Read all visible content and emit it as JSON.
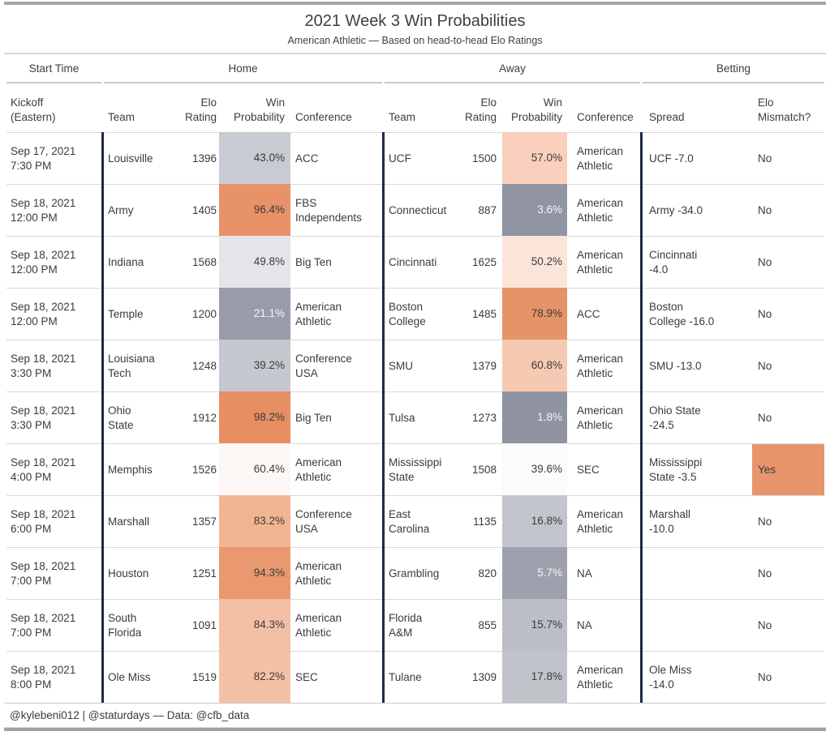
{
  "title": "2021 Week 3 Win Probabilities",
  "subtitle": "American Athletic — Based on head-to-head Elo Ratings",
  "footer": "@kylebeni012 | @staturdays — Data: @cfb_data",
  "groups": {
    "start_time": "Start Time",
    "home": "Home",
    "away": "Away",
    "betting": "Betting"
  },
  "columns": {
    "kickoff": "Kickoff\n(Eastern)",
    "team": "Team",
    "elo": "Elo\nRating",
    "win_prob": "Win\nProbability",
    "conference": "Conference",
    "spread": "Spread",
    "mismatch": "Elo\nMismatch?"
  },
  "colors": {
    "divider_navy": "#1b2a45",
    "grid_line": "#d9d9d9",
    "rule_gray": "#c9c9c9",
    "bar_gray": "#a5a5a5",
    "orange_max": "#e78e62",
    "gray_min": "#9094a2"
  },
  "chart_data": {
    "type": "table",
    "rows": [
      {
        "kickoff": "Sep 17, 2021\n7:30 PM",
        "h_team": "Louisville",
        "h_elo": "1396",
        "h_wp": "43.0%",
        "h_wp_bg": "#c9cbd2",
        "h_wp_fg": "#3b3b3b",
        "h_conf": "ACC",
        "a_team": "UCF",
        "a_elo": "1500",
        "a_wp": "57.0%",
        "a_wp_bg": "#f8d0bd",
        "a_wp_fg": "#3b3b3b",
        "a_conf": "American\nAthletic",
        "spread": "UCF -7.0",
        "mismatch": "No",
        "mm_bg": "transparent"
      },
      {
        "kickoff": "Sep 18, 2021\n12:00 PM",
        "h_team": "Army",
        "h_elo": "1405",
        "h_wp": "96.4%",
        "h_wp_bg": "#e8926a",
        "h_wp_fg": "#3b3b3b",
        "h_conf": "FBS\nIndependents",
        "a_team": "Connecticut",
        "a_elo": "887",
        "a_wp": "3.6%",
        "a_wp_bg": "#9195a3",
        "a_wp_fg": "#f5f5f5",
        "a_conf": "American\nAthletic",
        "spread": "Army -34.0",
        "mismatch": "No",
        "mm_bg": "transparent"
      },
      {
        "kickoff": "Sep 18, 2021\n12:00 PM",
        "h_team": "Indiana",
        "h_elo": "1568",
        "h_wp": "49.8%",
        "h_wp_bg": "#e5e5e9",
        "h_wp_fg": "#3b3b3b",
        "h_conf": "Big Ten",
        "a_team": "Cincinnati",
        "a_elo": "1625",
        "a_wp": "50.2%",
        "a_wp_bg": "#fbe4d8",
        "a_wp_fg": "#3b3b3b",
        "a_conf": "American\nAthletic",
        "spread": "Cincinnati\n-4.0",
        "mismatch": "No",
        "mm_bg": "transparent"
      },
      {
        "kickoff": "Sep 18, 2021\n12:00 PM",
        "h_team": "Temple",
        "h_elo": "1200",
        "h_wp": "21.1%",
        "h_wp_bg": "#989caa",
        "h_wp_fg": "#f5f5f5",
        "h_conf": "American\nAthletic",
        "a_team": "Boston\nCollege",
        "a_elo": "1485",
        "a_wp": "78.9%",
        "a_wp_bg": "#e59467",
        "a_wp_fg": "#3b3b3b",
        "a_conf": "ACC",
        "spread": "Boston\nCollege -16.0",
        "mismatch": "No",
        "mm_bg": "transparent"
      },
      {
        "kickoff": "Sep 18, 2021\n3:30 PM",
        "h_team": "Louisiana\nTech",
        "h_elo": "1248",
        "h_wp": "39.2%",
        "h_wp_bg": "#c6c8cf",
        "h_wp_fg": "#3b3b3b",
        "h_conf": "Conference\nUSA",
        "a_team": "SMU",
        "a_elo": "1379",
        "a_wp": "60.8%",
        "a_wp_bg": "#f6c9b2",
        "a_wp_fg": "#3b3b3b",
        "a_conf": "American\nAthletic",
        "spread": "SMU -13.0",
        "mismatch": "No",
        "mm_bg": "transparent"
      },
      {
        "kickoff": "Sep 18, 2021\n3:30 PM",
        "h_team": "Ohio\nState",
        "h_elo": "1912",
        "h_wp": "98.2%",
        "h_wp_bg": "#e78e62",
        "h_wp_fg": "#3b3b3b",
        "h_conf": "Big Ten",
        "a_team": "Tulsa",
        "a_elo": "1273",
        "a_wp": "1.8%",
        "a_wp_bg": "#9094a2",
        "a_wp_fg": "#f5f5f5",
        "a_conf": "American\nAthletic",
        "spread": "Ohio State\n-24.5",
        "mismatch": "No",
        "mm_bg": "transparent"
      },
      {
        "kickoff": "Sep 18, 2021\n4:00 PM",
        "h_team": "Memphis",
        "h_elo": "1526",
        "h_wp": "60.4%",
        "h_wp_bg": "#fdf8f5",
        "h_wp_fg": "#3b3b3b",
        "h_conf": "American\nAthletic",
        "a_team": "Mississippi\nState",
        "a_elo": "1508",
        "a_wp": "39.6%",
        "a_wp_bg": "#fbfbfb",
        "a_wp_fg": "#3b3b3b",
        "a_conf": "SEC",
        "spread": "Mississippi\nState -3.5",
        "mismatch": "Yes",
        "mm_bg": "#e8946c"
      },
      {
        "kickoff": "Sep 18, 2021\n6:00 PM",
        "h_team": "Marshall",
        "h_elo": "1357",
        "h_wp": "83.2%",
        "h_wp_bg": "#f2b592",
        "h_wp_fg": "#3b3b3b",
        "h_conf": "Conference\nUSA",
        "a_team": "East\nCarolina",
        "a_elo": "1135",
        "a_wp": "16.8%",
        "a_wp_bg": "#c3c5cc",
        "a_wp_fg": "#3b3b3b",
        "a_conf": "American\nAthletic",
        "spread": "Marshall\n-10.0",
        "mismatch": "No",
        "mm_bg": "transparent"
      },
      {
        "kickoff": "Sep 18, 2021\n7:00 PM",
        "h_team": "Houston",
        "h_elo": "1251",
        "h_wp": "94.3%",
        "h_wp_bg": "#e9986f",
        "h_wp_fg": "#3b3b3b",
        "h_conf": "American\nAthletic",
        "a_team": "Grambling",
        "a_elo": "820",
        "a_wp": "5.7%",
        "a_wp_bg": "#9da1ae",
        "a_wp_fg": "#f5f5f5",
        "a_conf": "NA",
        "spread": "",
        "mismatch": "No",
        "mm_bg": "transparent"
      },
      {
        "kickoff": "Sep 18, 2021\n7:00 PM",
        "h_team": "South\nFlorida",
        "h_elo": "1091",
        "h_wp": "84.3%",
        "h_wp_bg": "#f4c0a5",
        "h_wp_fg": "#3b3b3b",
        "h_conf": "American\nAthletic",
        "a_team": "Florida\nA&M",
        "a_elo": "855",
        "a_wp": "15.7%",
        "a_wp_bg": "#bbbec6",
        "a_wp_fg": "#3b3b3b",
        "a_conf": "NA",
        "spread": "",
        "mismatch": "No",
        "mm_bg": "transparent"
      },
      {
        "kickoff": "Sep 18, 2021\n8:00 PM",
        "h_team": "Ole Miss",
        "h_elo": "1519",
        "h_wp": "82.2%",
        "h_wp_bg": "#f4c1a6",
        "h_wp_fg": "#3b3b3b",
        "h_conf": "SEC",
        "a_team": "Tulane",
        "a_elo": "1309",
        "a_wp": "17.8%",
        "a_wp_bg": "#c1c3cb",
        "a_wp_fg": "#3b3b3b",
        "a_conf": "American\nAthletic",
        "spread": "Ole Miss\n-14.0",
        "mismatch": "No",
        "mm_bg": "transparent"
      }
    ]
  }
}
